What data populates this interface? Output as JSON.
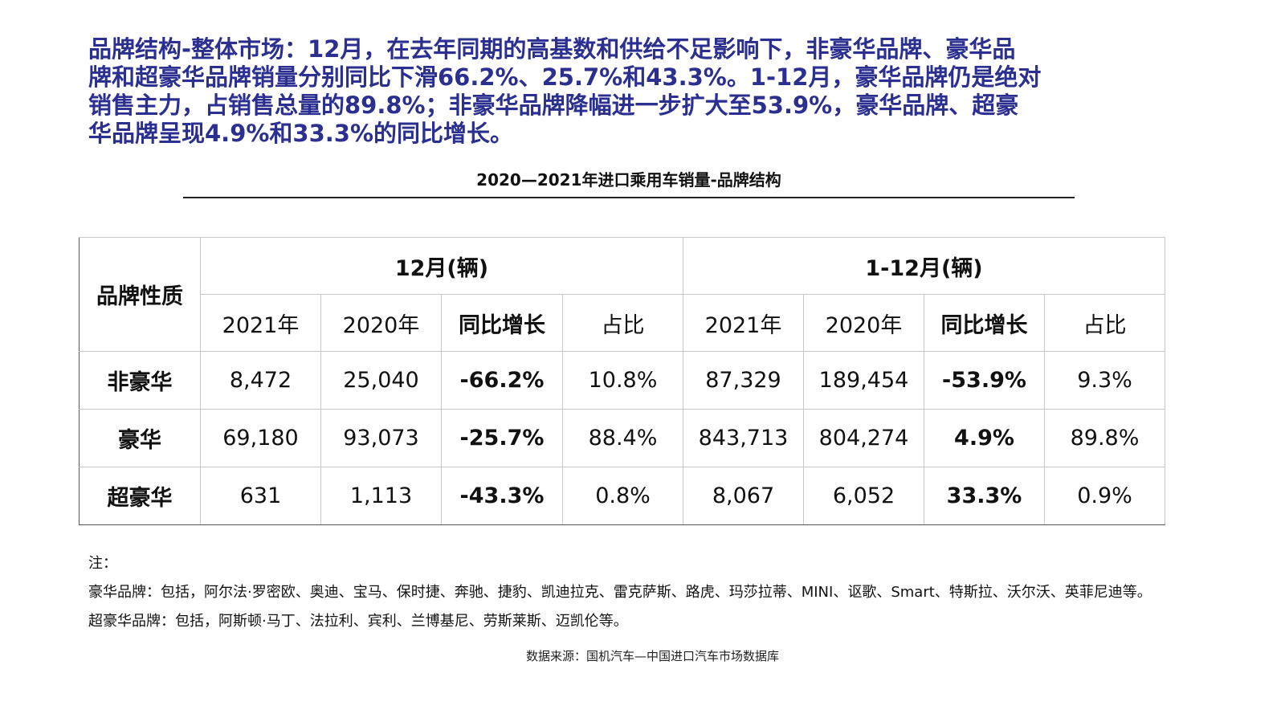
{
  "headline": [
    "品牌结构-整体市场：12月，在去年同期的高基数和供给不足影响下，非豪华品牌、豪华品",
    "牌和超豪华品牌销量分别同比下滑66.2%、25.7%和43.3%。1-12月，豪华品牌仍是绝对",
    "销售主力，占销售总量的89.8%；非豪华品牌降幅进一步扩大至53.9%，豪华品牌、超豪",
    "华品牌呈现4.9%和33.3%的同比增长。"
  ],
  "subtitle": "2020—2021年进口乘用车销量-品牌结构",
  "table": {
    "corner": "品牌性质",
    "groups": [
      "12月(辆)",
      "1-12月(辆)"
    ],
    "subheaders": [
      "2021年",
      "2020年",
      "同比增长",
      "占比",
      "2021年",
      "2020年",
      "同比增长",
      "占比"
    ],
    "rows": [
      [
        "非豪华",
        "8,472",
        "25,040",
        "-66.2%",
        "10.8%",
        "87,329",
        "189,454",
        "-53.9%",
        "9.3%"
      ],
      [
        "豪华",
        "69,180",
        "93,073",
        "-25.7%",
        "88.4%",
        "843,713",
        "804,274",
        "4.9%",
        "89.8%"
      ],
      [
        "超豪华",
        "631",
        "1,113",
        "-43.3%",
        "0.8%",
        "8,067",
        "6,052",
        "33.3%",
        "0.9%"
      ]
    ]
  },
  "notes": [
    "注：",
    "豪华品牌：包括，阿尔法·罗密欧、奥迪、宝马、保时捷、奔驰、捷豹、凯迪拉克、雷克萨斯、路虎、玛莎拉蒂、MINI、讴歌、Smart、特斯拉、沃尔沃、英菲尼迪等。",
    "超豪华品牌：包括，阿斯顿·马丁、法拉利、宾利、兰博基尼、劳斯莱斯、迈凯伦等。"
  ],
  "source": "数据来源：国机汽车—中国进口汽车市场数据库"
}
